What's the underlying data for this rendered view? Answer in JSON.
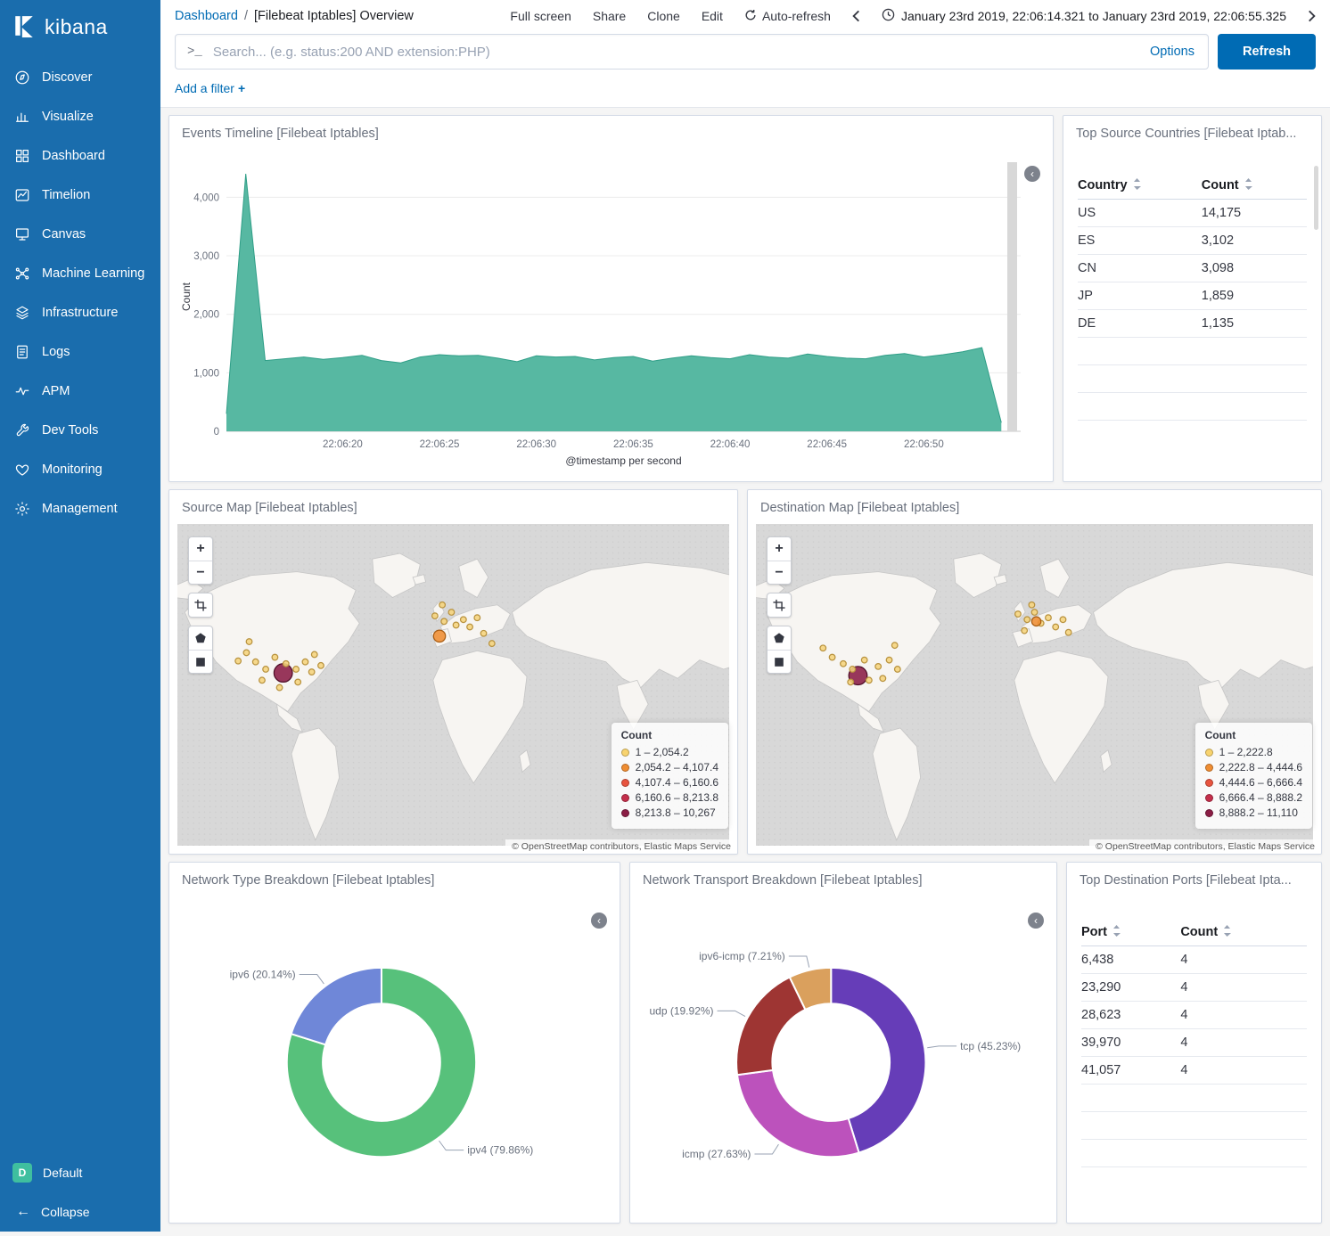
{
  "colors": {
    "primary": "#006bb4",
    "sidebar": "#1a6dad",
    "area_series": "#57b8a2"
  },
  "sidebar": {
    "logo_text": "kibana",
    "items": [
      {
        "label": "Discover",
        "icon": "discover"
      },
      {
        "label": "Visualize",
        "icon": "visualize"
      },
      {
        "label": "Dashboard",
        "icon": "dashboard"
      },
      {
        "label": "Timelion",
        "icon": "timelion"
      },
      {
        "label": "Canvas",
        "icon": "canvas"
      },
      {
        "label": "Machine Learning",
        "icon": "ml"
      },
      {
        "label": "Infrastructure",
        "icon": "infra"
      },
      {
        "label": "Logs",
        "icon": "logs"
      },
      {
        "label": "APM",
        "icon": "apm"
      },
      {
        "label": "Dev Tools",
        "icon": "devtools"
      },
      {
        "label": "Monitoring",
        "icon": "monitoring"
      },
      {
        "label": "Management",
        "icon": "management"
      }
    ],
    "space_badge": "D",
    "space_label": "Default",
    "collapse_label": "Collapse"
  },
  "header": {
    "breadcrumb": {
      "root": "Dashboard",
      "separator": "/",
      "current": "[Filebeat Iptables] Overview"
    },
    "menu": [
      "Full screen",
      "Share",
      "Clone",
      "Edit"
    ],
    "auto_refresh_label": "Auto-refresh",
    "time_range": "January 23rd 2019, 22:06:14.321 to January 23rd 2019, 22:06:55.325"
  },
  "search": {
    "prompt": ">_",
    "placeholder": "Search... (e.g. status:200 AND extension:PHP)",
    "options_label": "Options",
    "refresh_label": "Refresh"
  },
  "filter_bar": {
    "add_filter_label": "Add a filter",
    "plus": "+"
  },
  "panels": {
    "events_timeline": {
      "title": "Events Timeline [Filebeat Iptables]",
      "chart": {
        "type": "area",
        "color": "#57b8a2",
        "stroke": "#2f9e87",
        "ylabel": "Count",
        "xlabel": "@timestamp per second",
        "ylim": [
          0,
          4600
        ],
        "x_start": 14,
        "x_end": 55,
        "yticks": [
          {
            "v": 0,
            "label": "0"
          },
          {
            "v": 1000,
            "label": "1,000"
          },
          {
            "v": 2000,
            "label": "2,000"
          },
          {
            "v": 3000,
            "label": "3,000"
          },
          {
            "v": 4000,
            "label": "4,000"
          }
        ],
        "xticks": [
          {
            "s": 20,
            "label": "22:06:20"
          },
          {
            "s": 25,
            "label": "22:06:25"
          },
          {
            "s": 30,
            "label": "22:06:30"
          },
          {
            "s": 35,
            "label": "22:06:35"
          },
          {
            "s": 40,
            "label": "22:06:40"
          },
          {
            "s": 45,
            "label": "22:06:45"
          },
          {
            "s": 50,
            "label": "22:06:50"
          }
        ],
        "values": [
          300,
          4400,
          1210,
          1240,
          1270,
          1230,
          1260,
          1300,
          1210,
          1170,
          1270,
          1310,
          1290,
          1300,
          1250,
          1190,
          1290,
          1270,
          1280,
          1220,
          1260,
          1280,
          1200,
          1250,
          1290,
          1260,
          1240,
          1310,
          1270,
          1250,
          1320,
          1280,
          1250,
          1240,
          1300,
          1330,
          1270,
          1310,
          1360,
          1430,
          150
        ]
      }
    },
    "top_source_countries": {
      "title": "Top Source Countries [Filebeat Iptab...",
      "columns": [
        "Country",
        "Count"
      ],
      "rows": [
        [
          "US",
          "14,175"
        ],
        [
          "ES",
          "3,102"
        ],
        [
          "CN",
          "3,098"
        ],
        [
          "JP",
          "1,859"
        ],
        [
          "DE",
          "1,135"
        ]
      ],
      "empty_rows": 3
    },
    "source_map": {
      "title": "Source Map [Filebeat Iptables]",
      "legend_title": "Count",
      "legend": [
        {
          "label": "1 – 2,054.2",
          "color": "#f8d36e"
        },
        {
          "label": "2,054.2 – 4,107.4",
          "color": "#ef8d32"
        },
        {
          "label": "4,107.4 – 6,160.6",
          "color": "#e8543f"
        },
        {
          "label": "6,160.6 – 8,213.8",
          "color": "#c42f4b"
        },
        {
          "label": "8,213.8 – 10,267",
          "color": "#8b1d45"
        }
      ],
      "attribution": "© OpenStreetMap contributors, Elastic Maps Service",
      "controls": {
        "zoom_in": "+",
        "zoom_out": "−"
      },
      "markers": [
        {
          "x": 135,
          "y": 162,
          "r": 10,
          "c": "maroon"
        },
        {
          "x": 305,
          "y": 122,
          "r": 6.5,
          "c": "orange"
        },
        {
          "x": 95,
          "y": 140,
          "r": 3.2,
          "c": "yellow"
        },
        {
          "x": 105,
          "y": 150,
          "r": 3.2,
          "c": "yellow"
        },
        {
          "x": 116,
          "y": 158,
          "r": 3.2,
          "c": "yellow"
        },
        {
          "x": 126,
          "y": 145,
          "r": 3.2,
          "c": "yellow"
        },
        {
          "x": 138,
          "y": 152,
          "r": 3.2,
          "c": "yellow"
        },
        {
          "x": 149,
          "y": 158,
          "r": 3.2,
          "c": "yellow"
        },
        {
          "x": 159,
          "y": 150,
          "r": 3.2,
          "c": "yellow"
        },
        {
          "x": 169,
          "y": 142,
          "r": 3.2,
          "c": "yellow"
        },
        {
          "x": 112,
          "y": 170,
          "r": 3.2,
          "c": "yellow"
        },
        {
          "x": 131,
          "y": 178,
          "r": 3.2,
          "c": "yellow"
        },
        {
          "x": 151,
          "y": 172,
          "r": 3.2,
          "c": "yellow"
        },
        {
          "x": 166,
          "y": 161,
          "r": 3.2,
          "c": "yellow"
        },
        {
          "x": 98,
          "y": 128,
          "r": 3.2,
          "c": "yellow"
        },
        {
          "x": 176,
          "y": 154,
          "r": 3.2,
          "c": "yellow"
        },
        {
          "x": 86,
          "y": 149,
          "r": 3.2,
          "c": "yellow"
        },
        {
          "x": 300,
          "y": 100,
          "r": 3.2,
          "c": "yellow"
        },
        {
          "x": 310,
          "y": 106,
          "r": 3.2,
          "c": "yellow"
        },
        {
          "x": 318,
          "y": 96,
          "r": 3.2,
          "c": "yellow"
        },
        {
          "x": 323,
          "y": 110,
          "r": 3.2,
          "c": "yellow"
        },
        {
          "x": 331,
          "y": 104,
          "r": 3.2,
          "c": "yellow"
        },
        {
          "x": 338,
          "y": 112,
          "r": 3.2,
          "c": "yellow"
        },
        {
          "x": 346,
          "y": 102,
          "r": 3.2,
          "c": "yellow"
        },
        {
          "x": 308,
          "y": 88,
          "r": 3.2,
          "c": "yellow"
        },
        {
          "x": 353,
          "y": 119,
          "r": 3.2,
          "c": "yellow"
        },
        {
          "x": 362,
          "y": 130,
          "r": 3.2,
          "c": "yellow"
        }
      ]
    },
    "destination_map": {
      "title": "Destination Map [Filebeat Iptables]",
      "legend_title": "Count",
      "legend": [
        {
          "label": "1 – 2,222.8",
          "color": "#f8d36e"
        },
        {
          "label": "2,222.8 – 4,444.6",
          "color": "#ef8d32"
        },
        {
          "label": "4,444.6 – 6,666.4",
          "color": "#e8543f"
        },
        {
          "label": "6,666.4 – 8,888.2",
          "color": "#c42f4b"
        },
        {
          "label": "8,888.2 – 11,110",
          "color": "#8b1d45"
        }
      ],
      "attribution": "© OpenStreetMap contributors, Elastic Maps Service",
      "controls": {
        "zoom_in": "+",
        "zoom_out": "−"
      },
      "markers": [
        {
          "x": 128,
          "y": 165,
          "r": 10,
          "c": "maroon"
        },
        {
          "x": 100,
          "y": 145,
          "r": 3.2,
          "c": "yellow"
        },
        {
          "x": 112,
          "y": 152,
          "r": 3.2,
          "c": "yellow"
        },
        {
          "x": 122,
          "y": 158,
          "r": 3.2,
          "c": "yellow"
        },
        {
          "x": 135,
          "y": 148,
          "r": 3.2,
          "c": "yellow"
        },
        {
          "x": 150,
          "y": 155,
          "r": 3.2,
          "c": "yellow"
        },
        {
          "x": 162,
          "y": 148,
          "r": 3.2,
          "c": "yellow"
        },
        {
          "x": 140,
          "y": 170,
          "r": 3.2,
          "c": "yellow"
        },
        {
          "x": 120,
          "y": 172,
          "r": 3.2,
          "c": "yellow"
        },
        {
          "x": 155,
          "y": 168,
          "r": 3.2,
          "c": "yellow"
        },
        {
          "x": 171,
          "y": 158,
          "r": 3.2,
          "c": "yellow"
        },
        {
          "x": 90,
          "y": 135,
          "r": 3.2,
          "c": "yellow"
        },
        {
          "x": 168,
          "y": 132,
          "r": 3.2,
          "c": "yellow"
        },
        {
          "x": 302,
          "y": 98,
          "r": 3.2,
          "c": "yellow"
        },
        {
          "x": 312,
          "y": 104,
          "r": 3.2,
          "c": "yellow"
        },
        {
          "x": 320,
          "y": 96,
          "r": 3.2,
          "c": "yellow"
        },
        {
          "x": 327,
          "y": 108,
          "r": 3.2,
          "c": "yellow"
        },
        {
          "x": 335,
          "y": 102,
          "r": 3.2,
          "c": "yellow"
        },
        {
          "x": 343,
          "y": 112,
          "r": 3.2,
          "c": "yellow"
        },
        {
          "x": 351,
          "y": 104,
          "r": 3.2,
          "c": "yellow"
        },
        {
          "x": 317,
          "y": 88,
          "r": 3.2,
          "c": "yellow"
        },
        {
          "x": 322,
          "y": 106,
          "r": 5,
          "c": "orange"
        },
        {
          "x": 309,
          "y": 116,
          "r": 3.2,
          "c": "yellow"
        },
        {
          "x": 357,
          "y": 118,
          "r": 3.2,
          "c": "yellow"
        }
      ]
    },
    "network_type": {
      "title": "Network Type Breakdown [Filebeat Iptables]",
      "chart": {
        "type": "pie",
        "slices": [
          {
            "name": "ipv4",
            "label": "ipv4 (79.86%)",
            "value": 79.86,
            "color": "#57c17b"
          },
          {
            "name": "ipv6",
            "label": "ipv6 (20.14%)",
            "value": 20.14,
            "color": "#6f87d8"
          }
        ]
      }
    },
    "network_transport": {
      "title": "Network Transport Breakdown [Filebeat Iptables]",
      "chart": {
        "type": "pie",
        "slices": [
          {
            "name": "tcp",
            "label": "tcp (45.23%)",
            "value": 45.23,
            "color": "#663db8"
          },
          {
            "name": "icmp",
            "label": "icmp (27.63%)",
            "value": 27.63,
            "color": "#bc52bc"
          },
          {
            "name": "udp",
            "label": "udp (19.92%)",
            "value": 19.92,
            "color": "#9e3533"
          },
          {
            "name": "ipv6-icmp",
            "label": "ipv6-icmp (7.21%)",
            "value": 7.21,
            "color": "#daa05d"
          }
        ]
      }
    },
    "top_destination_ports": {
      "title": "Top Destination Ports [Filebeat Ipta...",
      "columns": [
        "Port",
        "Count"
      ],
      "rows": [
        [
          "6,438",
          "4"
        ],
        [
          "23,290",
          "4"
        ],
        [
          "28,623",
          "4"
        ],
        [
          "39,970",
          "4"
        ],
        [
          "41,057",
          "4"
        ]
      ],
      "empty_rows": 3
    }
  }
}
